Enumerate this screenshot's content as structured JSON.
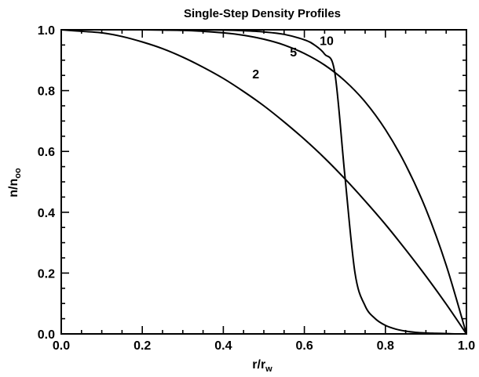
{
  "chart_data": {
    "type": "line",
    "title": "Single-Step Density Profiles",
    "xlabel": {
      "main": "r/r",
      "sub": "w"
    },
    "ylabel": {
      "main": "n/n",
      "sub": "oo"
    },
    "xlim": [
      0.0,
      1.0
    ],
    "ylim": [
      0.0,
      1.0
    ],
    "x_ticks": [
      "0.0",
      "0.2",
      "0.4",
      "0.6",
      "0.8",
      "1.0"
    ],
    "y_ticks": [
      "0.0",
      "0.2",
      "0.4",
      "0.6",
      "0.8",
      "1.0"
    ],
    "grid": false,
    "legend": "none",
    "series": [
      {
        "label": "2",
        "label_at": {
          "x": 0.48,
          "y": 0.84
        },
        "x": [
          0.0,
          0.05,
          0.1,
          0.15,
          0.2,
          0.25,
          0.3,
          0.35,
          0.4,
          0.45,
          0.5,
          0.55,
          0.6,
          0.65,
          0.7,
          0.75,
          0.8,
          0.85,
          0.9,
          0.95,
          1.0
        ],
        "y": [
          1.0,
          0.995,
          0.99,
          0.978,
          0.96,
          0.938,
          0.91,
          0.877,
          0.84,
          0.797,
          0.75,
          0.697,
          0.64,
          0.578,
          0.51,
          0.437,
          0.36,
          0.277,
          0.19,
          0.098,
          0.0
        ]
      },
      {
        "label": "5",
        "label_at": {
          "x": 0.573,
          "y": 0.912
        },
        "x": [
          0.0,
          0.05,
          0.1,
          0.15,
          0.2,
          0.25,
          0.3,
          0.35,
          0.4,
          0.45,
          0.5,
          0.55,
          0.6,
          0.65,
          0.7,
          0.75,
          0.8,
          0.85,
          0.9,
          0.95,
          1.0
        ],
        "y": [
          1.0,
          1.0,
          1.0,
          1.0,
          1.0,
          0.999,
          0.998,
          0.995,
          0.99,
          0.982,
          0.969,
          0.95,
          0.922,
          0.884,
          0.832,
          0.763,
          0.672,
          0.556,
          0.41,
          0.226,
          0.0
        ]
      },
      {
        "label": "10",
        "label_at": {
          "x": 0.655,
          "y": 0.95
        },
        "x": [
          0.0,
          0.1,
          0.2,
          0.3,
          0.4,
          0.45,
          0.5,
          0.55,
          0.6,
          0.625,
          0.65,
          0.675,
          0.7,
          0.725,
          0.75,
          0.775,
          0.8,
          0.825,
          0.85,
          0.875,
          0.9,
          0.925,
          0.95,
          0.975,
          1.0
        ],
        "y": [
          1.0,
          1.0,
          1.0,
          1.0,
          0.999,
          0.997,
          0.993,
          0.985,
          0.967,
          0.95,
          0.92,
          0.86,
          0.52,
          0.2,
          0.092,
          0.05,
          0.028,
          0.016,
          0.009,
          0.005,
          0.003,
          0.002,
          0.001,
          0.0,
          0.0
        ]
      }
    ]
  }
}
